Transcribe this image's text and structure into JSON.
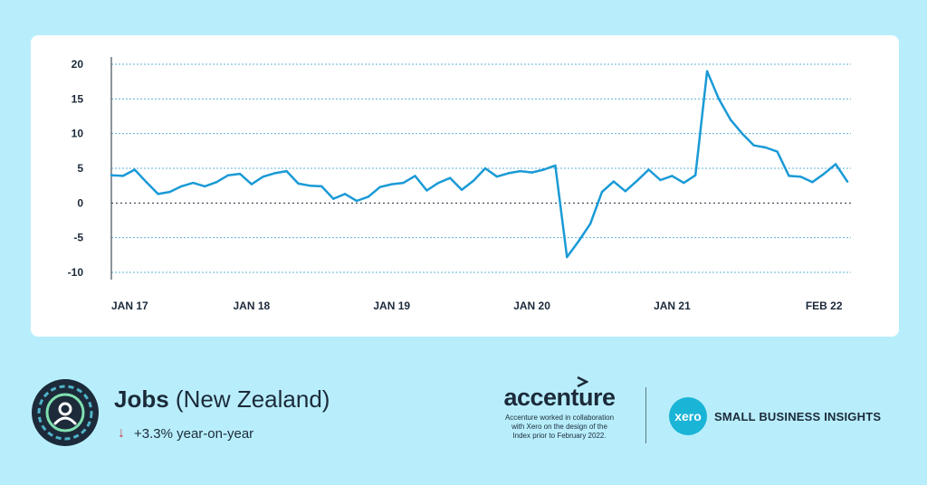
{
  "chart_data": {
    "type": "line",
    "title": "",
    "xlabel": "",
    "ylabel": "",
    "ylim": [
      -10,
      20
    ],
    "yticks": [
      20,
      15,
      10,
      5,
      0,
      -5,
      -10
    ],
    "ytick_labels": [
      "20",
      "15",
      "10",
      "5",
      "0",
      "-5",
      "-10"
    ],
    "x_tick_labels": [
      {
        "label": "JAN 17",
        "index": 0
      },
      {
        "label": "JAN 18",
        "index": 12
      },
      {
        "label": "JAN 19",
        "index": 24
      },
      {
        "label": "JAN 20",
        "index": 36
      },
      {
        "label": "JAN 21",
        "index": 48
      },
      {
        "label": "FEB 22",
        "index": 61
      }
    ],
    "grid": true,
    "color": "#1a9ad6",
    "series": [
      {
        "name": "",
        "values": [
          4.0,
          3.9,
          4.8,
          3.0,
          1.3,
          1.6,
          2.4,
          2.9,
          2.4,
          3.0,
          4.0,
          4.2,
          2.7,
          3.8,
          4.3,
          4.6,
          2.8,
          2.5,
          2.4,
          0.6,
          1.3,
          0.3,
          0.9,
          2.3,
          2.7,
          2.9,
          3.9,
          1.8,
          2.9,
          3.6,
          1.9,
          3.2,
          5.0,
          3.8,
          4.3,
          4.6,
          4.4,
          4.8,
          5.4,
          -7.8,
          -5.5,
          -3.0,
          1.6,
          3.1,
          1.7,
          3.2,
          4.8,
          3.3,
          3.9,
          2.9,
          4.0,
          19.0,
          15.0,
          12.0,
          10.0,
          8.3,
          8.0,
          7.4,
          3.9,
          3.8,
          3.0,
          4.2,
          5.6,
          3.1
        ]
      }
    ]
  },
  "footer": {
    "title_bold": "Jobs",
    "title_regular": "(New Zealand)",
    "yoy_arrow": "↓",
    "yoy_text": "+3.3% year-on-year",
    "emblem_icon": "person-circle-icon",
    "accenture_word": "accenture",
    "accenture_note_1": "Accenture worked in collaboration",
    "accenture_note_2": "with Xero on the design of the",
    "accenture_note_3": "Index prior to February 2022.",
    "xero_logo_text": "xero",
    "xero_tagline": "SMALL BUSINESS INSIGHTS"
  }
}
